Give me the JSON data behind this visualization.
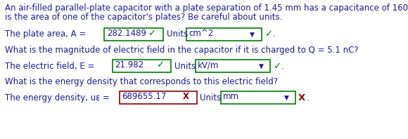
{
  "bg_color": "#ffffff",
  "text_color": "#1a1a8c",
  "green": "#008000",
  "dark_red": "#8b0000",
  "box_green_border": "#008000",
  "box_red_border": "#8b0000",
  "line1": "An air-filled parallel-plate capacitor with a plate separation of 1.45 mm has a capacitance of 160 pF. What",
  "line2": "is the area of one of the capacitor's plates? Be careful about units.",
  "row1_label": "The plate area, A = ",
  "row1_value": "282.1489",
  "row1_check": "✓",
  "row1_units_value": "cm^2",
  "row2_question": "What is the magnitude of electric field in the capacitor if it is charged to Q = 5.1 nC?",
  "row2_label": "The electric field, E = ",
  "row2_value": "21.982",
  "row2_check": "✓",
  "row2_units_value": "kV/m",
  "row3_question": "What is the energy density that corresponds to this electric field?",
  "row3_label": "The energy density, uᴇ = ",
  "row3_value": "689655.17",
  "row3_x_inside": "X",
  "row3_units_value": "mm",
  "row3_x_outside": "X",
  "font_family": "DejaVu Sans",
  "font_size": 8.5,
  "units_label": "Units"
}
